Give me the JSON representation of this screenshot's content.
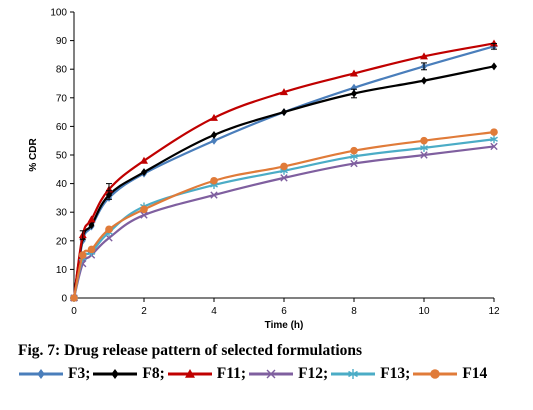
{
  "chart_data": {
    "type": "line",
    "title": "",
    "xlabel": "Time (h)",
    "ylabel": "% CDR",
    "xlim": [
      0,
      12
    ],
    "ylim": [
      0,
      100
    ],
    "xticks": [
      0,
      2,
      4,
      6,
      8,
      10,
      12
    ],
    "yticks": [
      0,
      10,
      20,
      30,
      40,
      50,
      60,
      70,
      80,
      90,
      100
    ],
    "grid": false,
    "legend": "below",
    "x": [
      0,
      0.25,
      0.5,
      1,
      2,
      4,
      6,
      8,
      10,
      12
    ],
    "series": [
      {
        "name": "F3",
        "color": "#4a7ebb",
        "marker": "diamond",
        "values": [
          0,
          20,
          25,
          35,
          43.5,
          55,
          65,
          73.5,
          81,
          88
        ]
      },
      {
        "name": "F8",
        "color": "#000000",
        "marker": "diamond",
        "values": [
          0,
          21,
          25.5,
          36,
          44,
          57,
          65,
          71.5,
          76,
          81
        ]
      },
      {
        "name": "F11",
        "color": "#c00000",
        "marker": "triangle",
        "values": [
          0,
          22,
          27.5,
          38,
          48,
          63,
          72,
          78.5,
          84.5,
          89
        ]
      },
      {
        "name": "F12",
        "color": "#7f5f9f",
        "marker": "x",
        "values": [
          0,
          12,
          15,
          21,
          29,
          36,
          42,
          47,
          50,
          53
        ]
      },
      {
        "name": "F13",
        "color": "#4bacc6",
        "marker": "star",
        "values": [
          0,
          14,
          16,
          23,
          32,
          39.5,
          44.5,
          49.5,
          52.5,
          55.5
        ]
      },
      {
        "name": "F14",
        "color": "#e07b39",
        "marker": "circle",
        "values": [
          0,
          15,
          17,
          24,
          31,
          41,
          46,
          51.5,
          55,
          58
        ]
      }
    ],
    "error_bars": [
      {
        "series": "F3",
        "x": 10,
        "y": 81,
        "err": 1.2
      },
      {
        "series": "F3",
        "x": 12,
        "y": 88,
        "err": 1
      },
      {
        "series": "F8",
        "x": 1,
        "y": 36,
        "err": 1.5
      },
      {
        "series": "F8",
        "x": 8,
        "y": 71.5,
        "err": 1.5
      },
      {
        "series": "F11",
        "x": 1,
        "y": 38,
        "err": 2
      },
      {
        "series": "F11",
        "x": 0.25,
        "y": 22,
        "err": 1.5
      }
    ]
  },
  "caption": "Fig. 7: Drug release pattern of selected formulations",
  "legend_items": [
    {
      "label": "F3;",
      "color": "#4a7ebb",
      "marker": "diamond"
    },
    {
      "label": "F8;",
      "color": "#000000",
      "marker": "diamond"
    },
    {
      "label": "F11;",
      "color": "#c00000",
      "marker": "triangle"
    },
    {
      "label": "F12;",
      "color": "#7f5f9f",
      "marker": "x"
    },
    {
      "label": "F13;",
      "color": "#4bacc6",
      "marker": "star"
    },
    {
      "label": "F14",
      "color": "#e07b39",
      "marker": "circle"
    }
  ]
}
